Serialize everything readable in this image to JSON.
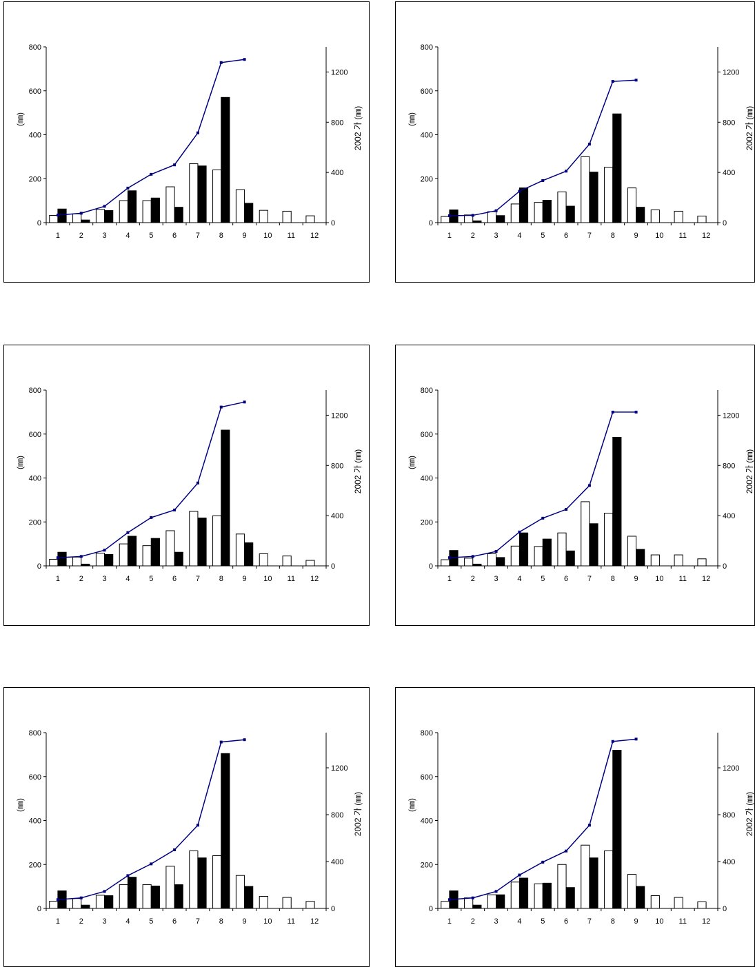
{
  "chart_data": [
    {
      "type": "bar",
      "categories": [
        "1",
        "2",
        "3",
        "4",
        "5",
        "6",
        "7",
        "8",
        "9",
        "10",
        "11",
        "12"
      ],
      "series": [
        {
          "type": "bar",
          "fill": "#ffffff",
          "values": [
            33,
            40,
            60,
            100,
            100,
            163,
            268,
            240,
            150,
            56,
            52,
            31
          ]
        },
        {
          "type": "bar",
          "fill": "#000000",
          "values": [
            62,
            12,
            55,
            145,
            112,
            70,
            258,
            570,
            88,
            null,
            null,
            null
          ]
        },
        {
          "type": "line",
          "axis": "right",
          "color": "#000080",
          "values": [
            60,
            75,
            130,
            275,
            385,
            460,
            715,
            1275,
            1300,
            null,
            null,
            null
          ]
        }
      ],
      "ylabel": "(㎜)",
      "y2label": "2002 가 (㎜)",
      "ylim": [
        0,
        800
      ],
      "yticks": [
        0,
        200,
        400,
        600,
        800
      ],
      "y2lim": [
        0,
        1400
      ],
      "y2ticks": [
        0,
        400,
        800,
        1200
      ]
    },
    {
      "type": "bar",
      "categories": [
        "1",
        "2",
        "3",
        "4",
        "5",
        "6",
        "7",
        "8",
        "9",
        "10",
        "11",
        "12"
      ],
      "series": [
        {
          "type": "bar",
          "fill": "#ffffff",
          "values": [
            28,
            35,
            50,
            85,
            92,
            140,
            300,
            252,
            158,
            58,
            52,
            30
          ]
        },
        {
          "type": "bar",
          "fill": "#000000",
          "values": [
            58,
            8,
            32,
            158,
            102,
            75,
            230,
            495,
            70,
            null,
            null,
            null
          ]
        },
        {
          "type": "line",
          "axis": "right",
          "color": "#000080",
          "values": [
            55,
            58,
            95,
            250,
            335,
            410,
            625,
            1125,
            1135,
            null,
            null,
            null
          ]
        }
      ],
      "ylabel": "(㎜)",
      "y2label": "2002 가 (㎜)",
      "ylim": [
        0,
        800
      ],
      "yticks": [
        0,
        200,
        400,
        600,
        800
      ],
      "y2lim": [
        0,
        1400
      ],
      "y2ticks": [
        0,
        400,
        800,
        1200
      ]
    },
    {
      "type": "bar",
      "categories": [
        "1",
        "2",
        "3",
        "4",
        "5",
        "6",
        "7",
        "8",
        "9",
        "10",
        "11",
        "12"
      ],
      "series": [
        {
          "type": "bar",
          "fill": "#ffffff",
          "values": [
            30,
            40,
            58,
            100,
            92,
            160,
            248,
            228,
            145,
            55,
            45,
            25
          ]
        },
        {
          "type": "bar",
          "fill": "#000000",
          "values": [
            62,
            8,
            52,
            135,
            125,
            62,
            218,
            618,
            105,
            null,
            null,
            null
          ]
        },
        {
          "type": "line",
          "axis": "right",
          "color": "#000080",
          "values": [
            65,
            75,
            125,
            265,
            385,
            445,
            660,
            1265,
            1305,
            null,
            null,
            null
          ]
        }
      ],
      "ylabel": "(㎜)",
      "y2label": "2002 가 (㎜)",
      "ylim": [
        0,
        800
      ],
      "yticks": [
        0,
        200,
        400,
        600,
        800
      ],
      "y2lim": [
        0,
        1400
      ],
      "y2ticks": [
        0,
        400,
        800,
        1200
      ]
    },
    {
      "type": "bar",
      "categories": [
        "1",
        "2",
        "3",
        "4",
        "5",
        "6",
        "7",
        "8",
        "9",
        "10",
        "11",
        "12"
      ],
      "series": [
        {
          "type": "bar",
          "fill": "#ffffff",
          "values": [
            28,
            35,
            55,
            90,
            88,
            150,
            292,
            240,
            135,
            50,
            50,
            32
          ]
        },
        {
          "type": "bar",
          "fill": "#000000",
          "values": [
            70,
            8,
            38,
            150,
            122,
            68,
            192,
            585,
            75,
            null,
            null,
            null
          ]
        },
        {
          "type": "line",
          "axis": "right",
          "color": "#000080",
          "values": [
            65,
            75,
            115,
            270,
            380,
            450,
            640,
            1225,
            1225,
            null,
            null,
            null
          ]
        }
      ],
      "ylabel": "(㎜)",
      "y2label": "2002 가 (㎜)",
      "ylim": [
        0,
        800
      ],
      "yticks": [
        0,
        200,
        400,
        600,
        800
      ],
      "y2lim": [
        0,
        1400
      ],
      "y2ticks": [
        0,
        400,
        800,
        1200
      ]
    },
    {
      "type": "bar",
      "categories": [
        "1",
        "2",
        "3",
        "4",
        "5",
        "6",
        "7",
        "8",
        "9",
        "10",
        "11",
        "12"
      ],
      "series": [
        {
          "type": "bar",
          "fill": "#ffffff",
          "values": [
            33,
            45,
            60,
            108,
            108,
            192,
            262,
            240,
            150,
            55,
            50,
            32
          ]
        },
        {
          "type": "bar",
          "fill": "#000000",
          "values": [
            80,
            15,
            58,
            142,
            102,
            108,
            230,
            705,
            100,
            null,
            null,
            null
          ]
        },
        {
          "type": "line",
          "axis": "right",
          "color": "#000080",
          "values": [
            75,
            90,
            145,
            280,
            380,
            500,
            710,
            1420,
            1440,
            null,
            null,
            null
          ]
        }
      ],
      "ylabel": "(㎜)",
      "y2label": "2002 가 (㎜)",
      "ylim": [
        0,
        800
      ],
      "yticks": [
        0,
        200,
        400,
        600,
        800
      ],
      "y2lim": [
        0,
        1500
      ],
      "y2ticks": [
        0,
        400,
        800,
        1200
      ]
    },
    {
      "type": "bar",
      "categories": [
        "1",
        "2",
        "3",
        "4",
        "5",
        "6",
        "7",
        "8",
        "9",
        "10",
        "11",
        "12"
      ],
      "series": [
        {
          "type": "bar",
          "fill": "#ffffff",
          "values": [
            32,
            48,
            62,
            120,
            112,
            200,
            288,
            262,
            155,
            58,
            50,
            30
          ]
        },
        {
          "type": "bar",
          "fill": "#000000",
          "values": [
            80,
            15,
            62,
            138,
            115,
            95,
            230,
            720,
            100,
            null,
            null,
            null
          ]
        },
        {
          "type": "line",
          "axis": "right",
          "color": "#000080",
          "values": [
            75,
            90,
            145,
            285,
            395,
            490,
            710,
            1425,
            1445,
            null,
            null,
            null
          ]
        }
      ],
      "ylabel": "(㎜)",
      "y2label": "2002 가 (㎜)",
      "ylim": [
        0,
        800
      ],
      "yticks": [
        0,
        200,
        400,
        600,
        800
      ],
      "y2lim": [
        0,
        1500
      ],
      "y2ticks": [
        0,
        400,
        800,
        1200
      ]
    }
  ]
}
